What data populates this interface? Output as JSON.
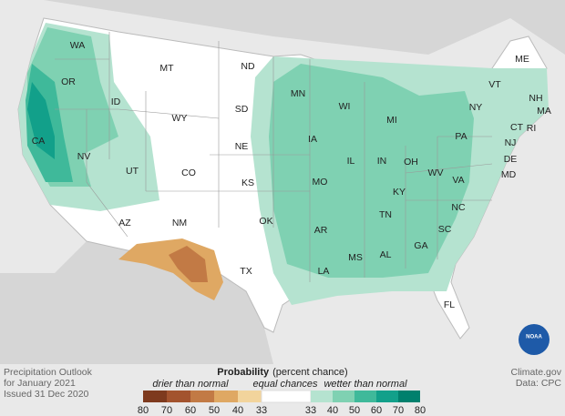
{
  "states": [
    "WA",
    "OR",
    "CA",
    "NV",
    "ID",
    "MT",
    "WY",
    "UT",
    "CO",
    "AZ",
    "NM",
    "ND",
    "SD",
    "NE",
    "KS",
    "OK",
    "TX",
    "MN",
    "IA",
    "MO",
    "AR",
    "LA",
    "WI",
    "IL",
    "MS",
    "MI",
    "IN",
    "OH",
    "KY",
    "TN",
    "AL",
    "GA",
    "FL",
    "SC",
    "NC",
    "VA",
    "WV",
    "PA",
    "NY",
    "ME",
    "VT",
    "NH",
    "MA",
    "CT",
    "RI",
    "NJ",
    "DE",
    "MD"
  ],
  "footer": {
    "left": [
      "Precipitation Outlook",
      "for January 2021",
      "Issued 31 Dec 2020"
    ],
    "right": [
      "Climate.gov",
      "Data: CPC"
    ]
  },
  "logo": "NOAA",
  "legend": {
    "title": "Probability",
    "subtitle": "(percent chance)",
    "drier": "drier than normal",
    "equal": "equal chances",
    "wetter": "wetter than normal",
    "drier_ticks": [
      80,
      70,
      60,
      50,
      40,
      33
    ],
    "wetter_ticks": [
      33,
      40,
      50,
      60,
      70,
      80
    ],
    "drier_colors": [
      "#7e3a1e",
      "#a3532e",
      "#c27a45",
      "#dfa863",
      "#f2d49c"
    ],
    "wetter_colors": [
      "#b5e3d0",
      "#7fd1b2",
      "#3fb99a",
      "#12a08a",
      "#00806d"
    ]
  }
}
